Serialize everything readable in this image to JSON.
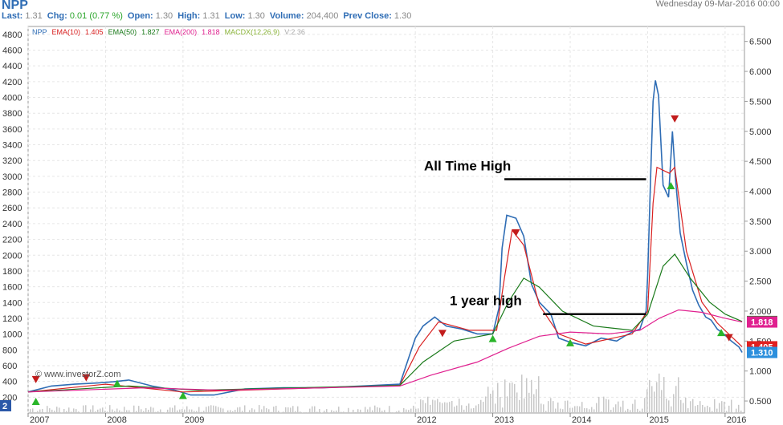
{
  "header": {
    "symbol": "NPP",
    "date": "Wednesday 09-Mar-2016 00:00",
    "quote": [
      {
        "label": "Last:",
        "value": "1.31",
        "color": "gray"
      },
      {
        "label": "Chg:",
        "value": "0.01 (0.77 %)",
        "color": "green"
      },
      {
        "label": "Open:",
        "value": "1.30",
        "color": "gray"
      },
      {
        "label": "High:",
        "value": "1.31",
        "color": "gray"
      },
      {
        "label": "Low:",
        "value": "1.30",
        "color": "gray"
      },
      {
        "label": "Volume:",
        "value": "204,400",
        "color": "gray"
      },
      {
        "label": "Prev Close:",
        "value": "1.30",
        "color": "gray"
      }
    ]
  },
  "legend": [
    {
      "text": "NPP",
      "color": "#2f6db5"
    },
    {
      "text": "EMA(10)",
      "color": "#d92020"
    },
    {
      "text": "1.405",
      "color": "#d92020"
    },
    {
      "text": "EMA(50)",
      "color": "#1a7a1a"
    },
    {
      "text": "1.827",
      "color": "#1a7a1a"
    },
    {
      "text": "EMA(200)",
      "color": "#e0208f"
    },
    {
      "text": "1.818",
      "color": "#e0208f"
    },
    {
      "text": "MACDX(12,26,9)",
      "color": "#8bb43a"
    },
    {
      "text": "V:2.36",
      "color": "#aaaaaa"
    }
  ],
  "watermark": "© www.investorZ.com",
  "annotations": {
    "all_time_high": "All Time High",
    "one_year_high": "1 year high"
  },
  "badges": [
    {
      "text": "1.827",
      "color": "#1f8a2a",
      "value": 1.827
    },
    {
      "text": "1.405",
      "color": "#e02020",
      "value": 1.405
    },
    {
      "text": "1.310",
      "color": "#2b8fdd",
      "value": 1.31
    },
    {
      "text": "1.818",
      "color": "#e0208f",
      "value": 1.818
    }
  ],
  "panel_number": "2",
  "chart_data": {
    "type": "line",
    "title": "NPP",
    "left_axis": {
      "ticks": [
        "4800",
        "4600",
        "4400",
        "4200",
        "4000",
        "3800",
        "3600",
        "3400",
        "3200",
        "3000",
        "2800",
        "2600",
        "2400",
        "2200",
        "2000",
        "1800",
        "1600",
        "1400",
        "1200",
        "1000",
        "800",
        "600",
        "400",
        "200"
      ],
      "range": [
        0,
        4900
      ]
    },
    "right_axis": {
      "ticks": [
        "6.500",
        "6.000",
        "5.500",
        "5.000",
        "4.500",
        "4.000",
        "3.500",
        "3.000",
        "2.500",
        "2.000",
        "1.500",
        "1.000",
        "0.500"
      ],
      "range": [
        0.3,
        6.75
      ]
    },
    "x_labels": [
      "2007",
      "2008",
      "2009",
      "2012",
      "2013",
      "2014",
      "2015",
      "2016"
    ],
    "x_range": [
      2007,
      2016.25
    ],
    "series": [
      {
        "name": "NPP",
        "color": "#2f6db5",
        "points": [
          [
            2007.0,
            0.65
          ],
          [
            2007.3,
            0.75
          ],
          [
            2007.6,
            0.78
          ],
          [
            2007.9,
            0.8
          ],
          [
            2008.1,
            0.82
          ],
          [
            2008.3,
            0.85
          ],
          [
            2008.6,
            0.75
          ],
          [
            2008.9,
            0.68
          ],
          [
            2009.1,
            0.6
          ],
          [
            2009.4,
            0.6
          ],
          [
            2009.8,
            0.7
          ],
          [
            2010.3,
            0.72
          ],
          [
            2010.8,
            0.72
          ],
          [
            2011.3,
            0.75
          ],
          [
            2011.8,
            0.78
          ],
          [
            2012.0,
            1.55
          ],
          [
            2012.1,
            1.75
          ],
          [
            2012.25,
            1.9
          ],
          [
            2012.4,
            1.75
          ],
          [
            2012.6,
            1.7
          ],
          [
            2012.8,
            1.62
          ],
          [
            2013.0,
            1.62
          ],
          [
            2013.08,
            2.05
          ],
          [
            2013.12,
            3.05
          ],
          [
            2013.18,
            3.6
          ],
          [
            2013.3,
            3.55
          ],
          [
            2013.4,
            3.25
          ],
          [
            2013.5,
            2.45
          ],
          [
            2013.6,
            2.15
          ],
          [
            2013.75,
            1.95
          ],
          [
            2013.85,
            1.55
          ],
          [
            2014.0,
            1.48
          ],
          [
            2014.2,
            1.42
          ],
          [
            2014.4,
            1.55
          ],
          [
            2014.6,
            1.5
          ],
          [
            2014.7,
            1.58
          ],
          [
            2014.8,
            1.65
          ],
          [
            2014.9,
            1.7
          ],
          [
            2014.98,
            2.0
          ],
          [
            2015.0,
            2.6
          ],
          [
            2015.04,
            4.3
          ],
          [
            2015.07,
            5.5
          ],
          [
            2015.1,
            5.85
          ],
          [
            2015.14,
            5.6
          ],
          [
            2015.2,
            4.1
          ],
          [
            2015.27,
            3.9
          ],
          [
            2015.32,
            5.0
          ],
          [
            2015.36,
            4.2
          ],
          [
            2015.42,
            3.3
          ],
          [
            2015.5,
            2.8
          ],
          [
            2015.58,
            2.35
          ],
          [
            2015.66,
            2.1
          ],
          [
            2015.75,
            1.9
          ],
          [
            2015.82,
            1.85
          ],
          [
            2015.9,
            1.7
          ],
          [
            2016.0,
            1.6
          ],
          [
            2016.08,
            1.5
          ],
          [
            2016.18,
            1.4
          ],
          [
            2016.22,
            1.31
          ]
        ]
      },
      {
        "name": "EMA(10)",
        "color": "#d92020",
        "points": [
          [
            2007.0,
            0.65
          ],
          [
            2008.0,
            0.78
          ],
          [
            2009.0,
            0.65
          ],
          [
            2011.8,
            0.76
          ],
          [
            2012.05,
            1.4
          ],
          [
            2012.3,
            1.82
          ],
          [
            2012.7,
            1.68
          ],
          [
            2013.05,
            1.68
          ],
          [
            2013.15,
            2.55
          ],
          [
            2013.25,
            3.35
          ],
          [
            2013.4,
            3.1
          ],
          [
            2013.6,
            2.1
          ],
          [
            2013.85,
            1.62
          ],
          [
            2014.2,
            1.45
          ],
          [
            2014.8,
            1.62
          ],
          [
            2015.0,
            2.0
          ],
          [
            2015.07,
            3.8
          ],
          [
            2015.12,
            4.4
          ],
          [
            2015.28,
            4.3
          ],
          [
            2015.35,
            4.4
          ],
          [
            2015.5,
            3.0
          ],
          [
            2015.7,
            2.15
          ],
          [
            2015.9,
            1.8
          ],
          [
            2016.22,
            1.405
          ]
        ]
      },
      {
        "name": "EMA(50)",
        "color": "#1a7a1a",
        "points": [
          [
            2007.0,
            0.65
          ],
          [
            2008.3,
            0.75
          ],
          [
            2009.2,
            0.68
          ],
          [
            2011.8,
            0.76
          ],
          [
            2012.1,
            1.15
          ],
          [
            2012.5,
            1.5
          ],
          [
            2013.0,
            1.62
          ],
          [
            2013.2,
            2.15
          ],
          [
            2013.4,
            2.55
          ],
          [
            2013.6,
            2.4
          ],
          [
            2013.9,
            2.0
          ],
          [
            2014.3,
            1.75
          ],
          [
            2014.8,
            1.68
          ],
          [
            2015.0,
            1.95
          ],
          [
            2015.2,
            2.75
          ],
          [
            2015.35,
            2.95
          ],
          [
            2015.55,
            2.55
          ],
          [
            2015.8,
            2.15
          ],
          [
            2016.0,
            1.95
          ],
          [
            2016.22,
            1.827
          ]
        ]
      },
      {
        "name": "EMA(200)",
        "color": "#e0208f",
        "points": [
          [
            2007.0,
            0.65
          ],
          [
            2008.5,
            0.72
          ],
          [
            2009.5,
            0.68
          ],
          [
            2011.8,
            0.75
          ],
          [
            2012.2,
            0.93
          ],
          [
            2012.8,
            1.15
          ],
          [
            2013.2,
            1.38
          ],
          [
            2013.6,
            1.58
          ],
          [
            2014.0,
            1.65
          ],
          [
            2014.5,
            1.62
          ],
          [
            2014.9,
            1.68
          ],
          [
            2015.15,
            1.88
          ],
          [
            2015.4,
            2.02
          ],
          [
            2015.7,
            1.98
          ],
          [
            2016.0,
            1.88
          ],
          [
            2016.22,
            1.818
          ]
        ]
      }
    ],
    "resistance_lines": [
      {
        "label": "All Time High",
        "value": 4.2,
        "x": [
          2013.15,
          2014.98
        ]
      },
      {
        "label": "1 year high",
        "value": 1.95,
        "x": [
          2013.65,
          2014.98
        ]
      }
    ]
  }
}
